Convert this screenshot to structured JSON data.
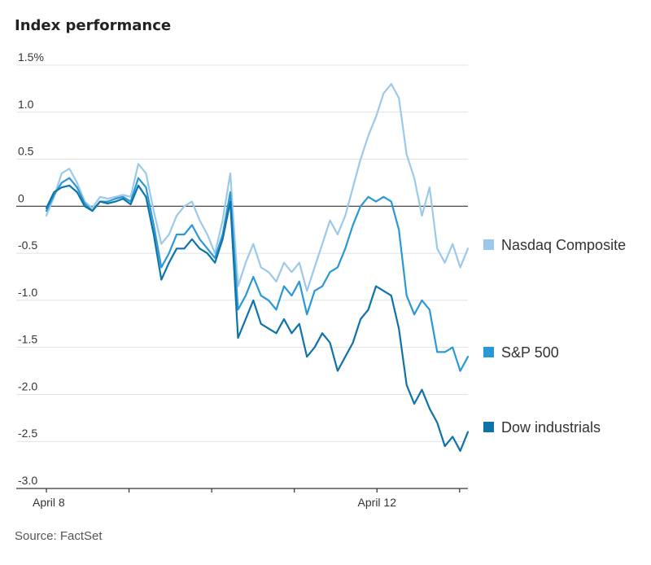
{
  "chart_data": {
    "type": "line",
    "title": "Index performance",
    "source": "Source: FactSet",
    "xlabel": "",
    "ylabel": "",
    "ylim": [
      -3.0,
      1.5
    ],
    "grid": true,
    "legend": "right",
    "x_tick_labels": [
      "April 8",
      "",
      "",
      "",
      "April 12",
      ""
    ],
    "y_ticks": [
      {
        "value": 1.5,
        "label": "1.5%"
      },
      {
        "value": 1.0,
        "label": "1.0"
      },
      {
        "value": 0.5,
        "label": "0.5"
      },
      {
        "value": 0.0,
        "label": "0"
      },
      {
        "value": -0.5,
        "label": "-0.5"
      },
      {
        "value": -1.0,
        "label": "-1.0"
      },
      {
        "value": -1.5,
        "label": "-1.5"
      },
      {
        "value": -2.0,
        "label": "-2.0"
      },
      {
        "value": -2.5,
        "label": "-2.5"
      },
      {
        "value": -3.0,
        "label": "-3.0"
      }
    ],
    "x_range": [
      0,
      51
    ],
    "series": [
      {
        "name": "Nasdaq Composite",
        "color": "#9cc9ea",
        "values": [
          -0.1,
          0.1,
          0.35,
          0.4,
          0.25,
          0.05,
          -0.02,
          0.1,
          0.08,
          0.1,
          0.12,
          0.1,
          0.45,
          0.35,
          -0.05,
          -0.4,
          -0.3,
          -0.1,
          0.0,
          0.05,
          -0.15,
          -0.3,
          -0.5,
          -0.15,
          0.35,
          -0.85,
          -0.6,
          -0.4,
          -0.65,
          -0.7,
          -0.8,
          -0.6,
          -0.7,
          -0.6,
          -0.9,
          -0.65,
          -0.4,
          -0.15,
          -0.3,
          -0.1,
          0.2,
          0.5,
          0.75,
          0.95,
          1.2,
          1.3,
          1.15,
          0.55,
          0.3,
          -0.1,
          0.2,
          -0.45,
          -0.6,
          -0.4,
          -0.65,
          -0.45
        ]
      },
      {
        "name": "S&P 500",
        "color": "#2a98d6",
        "values": [
          -0.05,
          0.12,
          0.25,
          0.3,
          0.2,
          0.03,
          -0.05,
          0.05,
          0.05,
          0.08,
          0.1,
          0.05,
          0.3,
          0.2,
          -0.2,
          -0.65,
          -0.5,
          -0.3,
          -0.3,
          -0.2,
          -0.35,
          -0.45,
          -0.55,
          -0.3,
          0.15,
          -1.1,
          -0.95,
          -0.75,
          -0.95,
          -1.0,
          -1.1,
          -0.85,
          -0.95,
          -0.8,
          -1.15,
          -0.9,
          -0.85,
          -0.7,
          -0.65,
          -0.45,
          -0.2,
          0.0,
          0.1,
          0.05,
          0.1,
          0.05,
          -0.25,
          -0.95,
          -1.15,
          -1.0,
          -1.1,
          -1.55,
          -1.55,
          -1.5,
          -1.75,
          -1.6
        ]
      },
      {
        "name": "Dow industrials",
        "color": "#0e73a8",
        "values": [
          -0.02,
          0.15,
          0.2,
          0.22,
          0.15,
          0.0,
          -0.05,
          0.05,
          0.03,
          0.05,
          0.08,
          0.02,
          0.22,
          0.1,
          -0.3,
          -0.78,
          -0.6,
          -0.45,
          -0.45,
          -0.35,
          -0.45,
          -0.5,
          -0.6,
          -0.35,
          0.05,
          -1.4,
          -1.2,
          -1.0,
          -1.25,
          -1.3,
          -1.35,
          -1.2,
          -1.35,
          -1.25,
          -1.6,
          -1.5,
          -1.35,
          -1.45,
          -1.75,
          -1.6,
          -1.45,
          -1.2,
          -1.1,
          -0.85,
          -0.9,
          -0.95,
          -1.3,
          -1.9,
          -2.1,
          -1.95,
          -2.15,
          -2.3,
          -2.55,
          -2.45,
          -2.6,
          -2.4
        ]
      }
    ]
  }
}
